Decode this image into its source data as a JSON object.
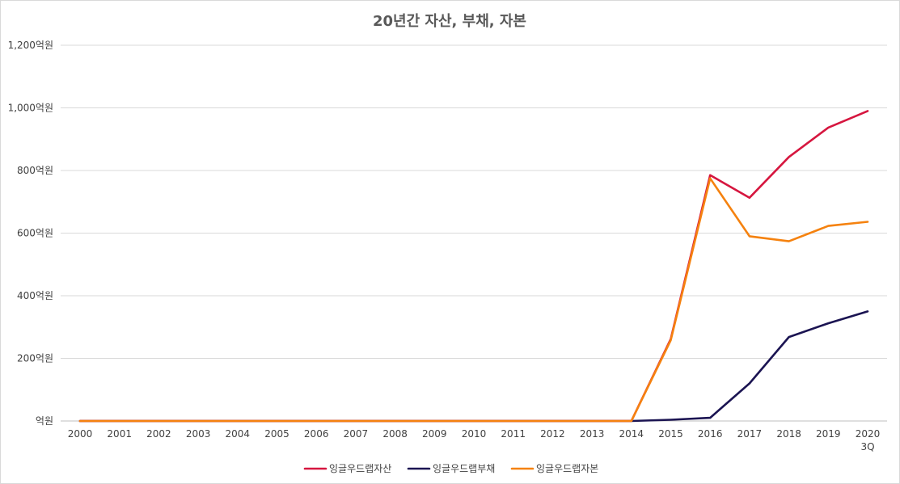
{
  "chart_data": {
    "type": "line",
    "title": "20년간 자산, 부채, 자본",
    "xlabel": "",
    "ylabel": "",
    "categories": [
      "2000",
      "2001",
      "2002",
      "2003",
      "2004",
      "2005",
      "2006",
      "2007",
      "2008",
      "2009",
      "2010",
      "2011",
      "2012",
      "2013",
      "2014",
      "2015",
      "2016",
      "2017",
      "2018",
      "2019",
      "2020"
    ],
    "category_sublabels": [
      "",
      "",
      "",
      "",
      "",
      "",
      "",
      "",
      "",
      "",
      "",
      "",
      "",
      "",
      "",
      "",
      "",
      "",
      "",
      "",
      "3Q"
    ],
    "y_ticks": [
      0,
      200,
      400,
      600,
      800,
      1000,
      1200
    ],
    "y_tick_labels": [
      "억원",
      "200억원",
      "400억원",
      "600억원",
      "800억원",
      "1,000억원",
      "1,200억원"
    ],
    "ylim": [
      0,
      1200
    ],
    "grid": true,
    "legend_position": "bottom",
    "series": [
      {
        "name": "잉글우드랩자산",
        "color": "#d6163f",
        "values": [
          0,
          0,
          0,
          0,
          0,
          0,
          0,
          0,
          0,
          0,
          0,
          0,
          0,
          0,
          0,
          262,
          785,
          713,
          843,
          937,
          990
        ]
      },
      {
        "name": "잉글우드랩부채",
        "color": "#1b1452",
        "values": [
          0,
          0,
          0,
          0,
          0,
          0,
          0,
          0,
          0,
          0,
          0,
          0,
          0,
          0,
          0,
          4,
          10,
          120,
          268,
          312,
          350
        ]
      },
      {
        "name": "잉글우드랩자본",
        "color": "#f5820f",
        "values": [
          0,
          0,
          0,
          0,
          0,
          0,
          0,
          0,
          0,
          0,
          0,
          0,
          0,
          0,
          0,
          258,
          775,
          590,
          574,
          623,
          636
        ]
      }
    ]
  }
}
